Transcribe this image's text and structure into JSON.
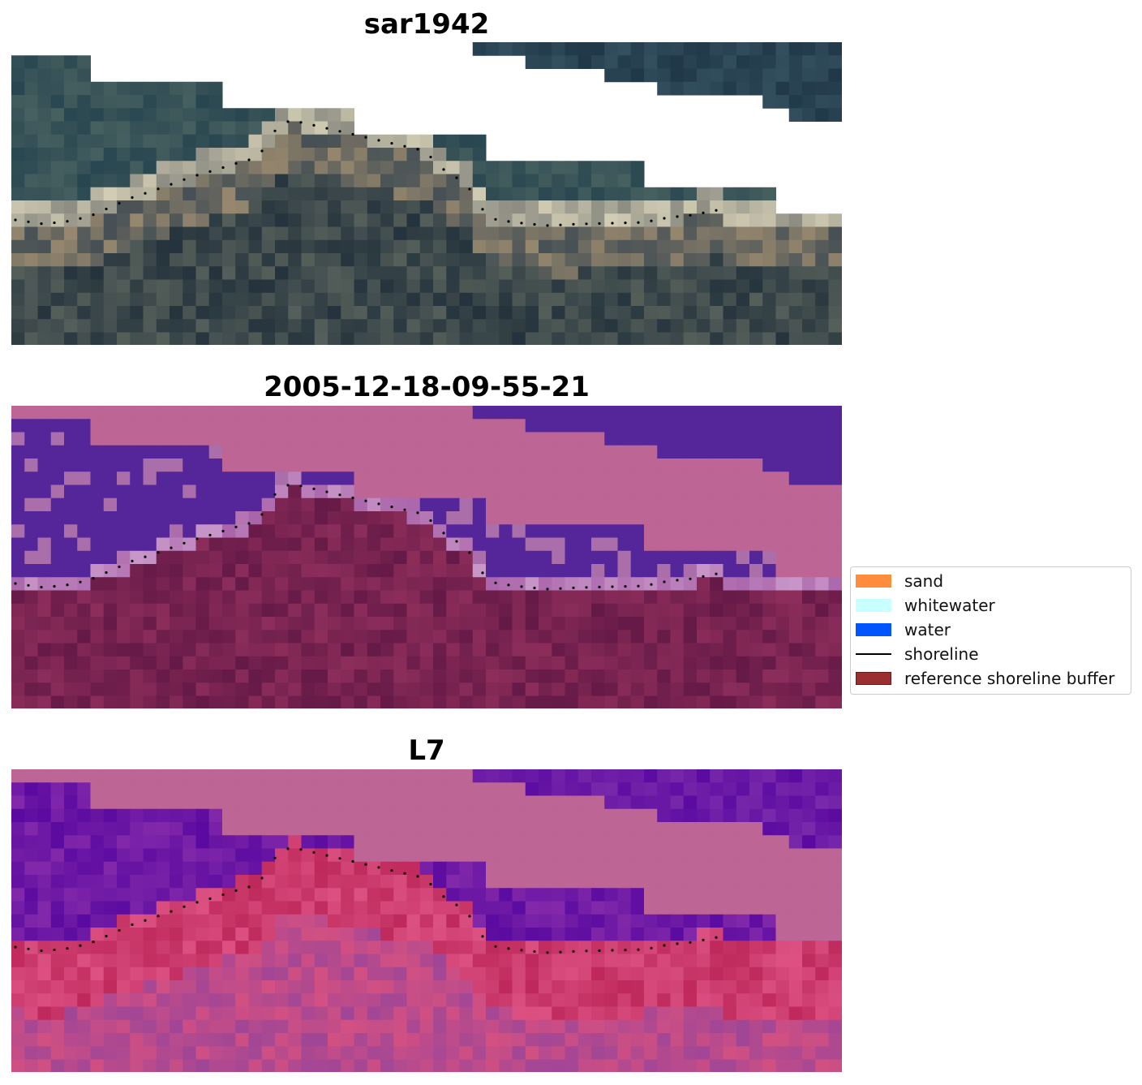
{
  "panels": [
    {
      "title": "sar1942",
      "style": "rgb"
    },
    {
      "title": "2005-12-18-09-55-21",
      "style": "class"
    },
    {
      "title": "L7",
      "style": "index"
    }
  ],
  "legend": {
    "items": [
      {
        "label": "sand",
        "color": "#ff8c3a",
        "kind": "patch"
      },
      {
        "label": "whitewater",
        "color": "#c8ffff",
        "kind": "patch"
      },
      {
        "label": "water",
        "color": "#0055ff",
        "kind": "patch"
      },
      {
        "label": "shoreline",
        "color": "#000000",
        "kind": "line"
      },
      {
        "label": "reference shoreline buffer",
        "color": "#9b2f2f",
        "kind": "patch"
      }
    ]
  },
  "colors": {
    "background": "#ffffff",
    "no_data_class": "#bd6595",
    "water_class": "#55269a",
    "land_class": "#6b1c4c",
    "buffer_overlay": "#b33a4a",
    "index_high": "#c8245a",
    "index_low": "#5a0aa0"
  }
}
